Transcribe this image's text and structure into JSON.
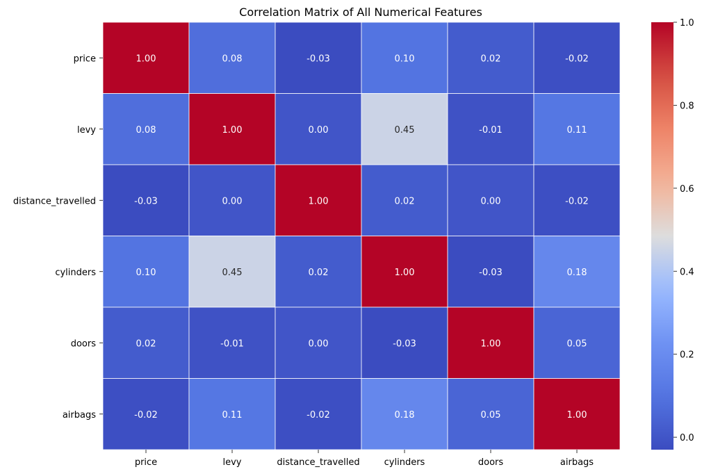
{
  "chart_data": {
    "type": "heatmap",
    "title": "Correlation Matrix of All Numerical Features",
    "rows": [
      "price",
      "levy",
      "distance_travelled",
      "cylinders",
      "doors",
      "airbags"
    ],
    "columns": [
      "price",
      "levy",
      "distance_travelled",
      "cylinders",
      "doors",
      "airbags"
    ],
    "values": [
      [
        1.0,
        0.08,
        -0.03,
        0.1,
        0.02,
        -0.02
      ],
      [
        0.08,
        1.0,
        -0.0,
        0.45,
        -0.01,
        0.11
      ],
      [
        -0.03,
        -0.0,
        1.0,
        0.02,
        -0.0,
        -0.02
      ],
      [
        0.1,
        0.45,
        0.02,
        1.0,
        -0.03,
        0.18
      ],
      [
        0.02,
        -0.01,
        -0.0,
        -0.03,
        1.0,
        0.05
      ],
      [
        -0.02,
        0.11,
        -0.02,
        0.18,
        0.05,
        1.0
      ]
    ],
    "value_format": "0.00",
    "colormap": "coolwarm",
    "color_range": [
      -0.03,
      1.0
    ],
    "colorbar_ticks": [
      0.0,
      0.2,
      0.4,
      0.6,
      0.8,
      1.0
    ],
    "colorbar_tick_labels": [
      "0.0",
      "0.2",
      "0.4",
      "0.6",
      "0.8",
      "1.0"
    ],
    "cell_border_color": "#ffffff"
  }
}
